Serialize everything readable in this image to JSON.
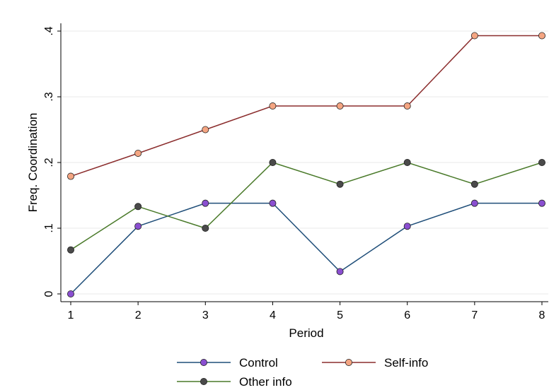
{
  "chart_data": {
    "type": "line",
    "title": "",
    "xlabel": "Period",
    "ylabel": "Freq. Coordination",
    "x": [
      1,
      2,
      3,
      4,
      5,
      6,
      7,
      8
    ],
    "xlim": [
      1,
      8
    ],
    "ylim": [
      0,
      0.4
    ],
    "x_ticks": [
      1,
      2,
      3,
      4,
      5,
      6,
      7,
      8
    ],
    "y_ticks": [
      0,
      0.1,
      0.2,
      0.3,
      0.4
    ],
    "y_tick_labels": [
      "0",
      ".1",
      ".2",
      ".3",
      ".4"
    ],
    "grid": true,
    "legend_position": "bottom",
    "series": [
      {
        "name": "Control",
        "values": [
          0.0,
          0.103,
          0.138,
          0.138,
          0.034,
          0.103,
          0.138,
          0.138
        ],
        "line_color": "#1f4e79",
        "marker_color": "#8a4fd0"
      },
      {
        "name": "Self-info",
        "values": [
          0.179,
          0.214,
          0.25,
          0.286,
          0.286,
          0.286,
          0.393,
          0.393
        ],
        "line_color": "#8b2d2d",
        "marker_color": "#f4a582"
      },
      {
        "name": "Other info",
        "values": [
          0.067,
          0.133,
          0.1,
          0.2,
          0.167,
          0.2,
          0.167,
          0.2
        ],
        "line_color": "#4a7a2a",
        "marker_color": "#4a4a4a"
      }
    ]
  }
}
